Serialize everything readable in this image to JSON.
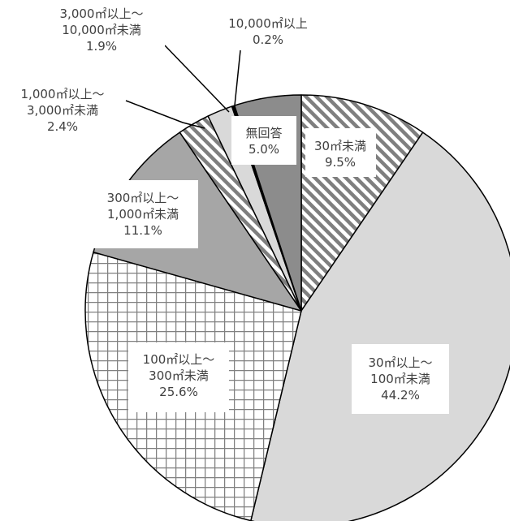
{
  "chart_data": {
    "type": "pie",
    "title": "",
    "start_angle_deg": 0,
    "direction": "clockwise",
    "slices": [
      {
        "label": "30㎡未満",
        "label_lines": [
          "30㎡未満"
        ],
        "value": 9.5,
        "value_text": "9.5%",
        "fill": "pattern-diag",
        "color": "#ffffff"
      },
      {
        "label": "30㎡以上～100㎡未満",
        "label_lines": [
          "30㎡以上～",
          "100㎡未満"
        ],
        "value": 44.2,
        "value_text": "44.2%",
        "fill": "solid",
        "color": "#d9d9d9"
      },
      {
        "label": "100㎡以上～300㎡未満",
        "label_lines": [
          "100㎡以上～",
          "300㎡未満"
        ],
        "value": 25.6,
        "value_text": "25.6%",
        "fill": "pattern-grid",
        "color": "#ffffff"
      },
      {
        "label": "300㎡以上～1,000㎡未満",
        "label_lines": [
          "300㎡以上～",
          "1,000㎡未満"
        ],
        "value": 11.1,
        "value_text": "11.1%",
        "fill": "solid",
        "color": "#a6a6a6"
      },
      {
        "label": "1,000㎡以上～3,000㎡未満",
        "label_lines": [
          "1,000㎡以上～",
          "3,000㎡未満"
        ],
        "value": 2.4,
        "value_text": "2.4%",
        "fill": "pattern-diag",
        "color": "#ffffff"
      },
      {
        "label": "3,000㎡以上～10,000㎡未満",
        "label_lines": [
          "3,000㎡以上～",
          "10,000㎡未満"
        ],
        "value": 1.9,
        "value_text": "1.9%",
        "fill": "solid",
        "color": "#d9d9d9"
      },
      {
        "label": "10,000㎡以上",
        "label_lines": [
          "10,000㎡以上"
        ],
        "value": 0.2,
        "value_text": "0.2%",
        "fill": "solid",
        "color": "#000000"
      },
      {
        "label": "無回答",
        "label_lines": [
          "無回答"
        ],
        "value": 5.0,
        "value_text": "5.0%",
        "fill": "solid",
        "color": "#8c8c8c"
      }
    ]
  }
}
